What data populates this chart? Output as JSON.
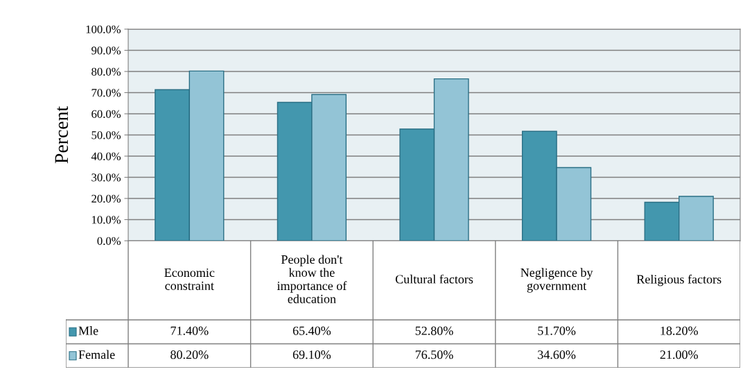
{
  "chart_data": {
    "type": "bar",
    "ylabel": "Percent",
    "categories": [
      "Economic constraint",
      "People don't know the importance of education",
      "Cultural factors",
      "Negligence by government",
      "Religious factors"
    ],
    "series": [
      {
        "name": "Mle",
        "color": "#4397ae",
        "values": [
          71.4,
          65.4,
          52.8,
          51.7,
          18.2
        ],
        "value_labels": [
          "71.40%",
          "65.40%",
          "52.80%",
          "51.70%",
          "18.20%"
        ]
      },
      {
        "name": "Female",
        "color": "#93c4d6",
        "values": [
          80.2,
          69.1,
          76.5,
          34.6,
          21.0
        ],
        "value_labels": [
          "80.20%",
          "69.10%",
          "76.50%",
          "34.60%",
          "21.00%"
        ]
      }
    ],
    "ylim": [
      0,
      100
    ],
    "yticks": [
      {
        "value": 0,
        "label": "0.0%"
      },
      {
        "value": 10,
        "label": "10.0%"
      },
      {
        "value": 20,
        "label": "20.0%"
      },
      {
        "value": 30,
        "label": "30.0%"
      },
      {
        "value": 40,
        "label": "40.0%"
      },
      {
        "value": 50,
        "label": "50.0%"
      },
      {
        "value": 60,
        "label": "60.0%"
      },
      {
        "value": 70,
        "label": "70.0%"
      },
      {
        "value": 80,
        "label": "80.0%"
      },
      {
        "value": 90,
        "label": "90.0%"
      },
      {
        "value": 100,
        "label": "100.0%"
      }
    ],
    "grid": "y",
    "legend": "bottom left"
  }
}
